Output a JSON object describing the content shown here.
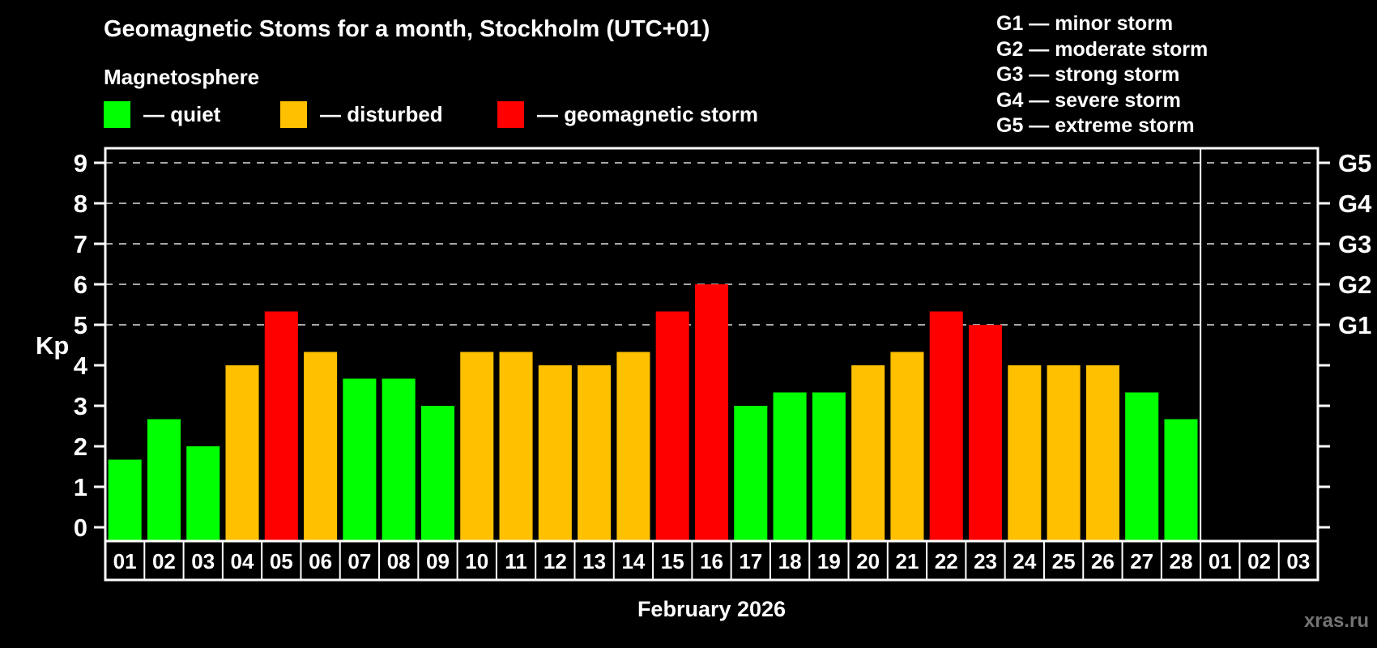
{
  "title": "Geomagnetic Stoms for a month, Stockholm (UTC+01)",
  "subtitle": "Magnetosphere",
  "legend": {
    "items": [
      {
        "label": "— quiet",
        "status": "quiet"
      },
      {
        "label": "— disturbed",
        "status": "disturbed"
      },
      {
        "label": "— geomagnetic storm",
        "status": "storm"
      }
    ]
  },
  "g_scale_legend": [
    "G1 — minor storm",
    "G2 — moderate storm",
    "G3 — strong storm",
    "G4 — severe storm",
    "G5 — extreme storm"
  ],
  "watermark": "xras.ru",
  "colors": {
    "quiet": "#00ff00",
    "disturbed": "#ffc000",
    "storm": "#ff0000",
    "background": "#000000",
    "axis": "#ffffff",
    "grid": "#a6a6a6",
    "watermark": "#747474"
  },
  "chart_data": {
    "type": "bar",
    "title": "Geomagnetic Stoms for a month, Stockholm (UTC+01)",
    "subtitle": "Magnetosphere",
    "xlabel": "February 2026",
    "ylabel": "Kp",
    "ylim": [
      0,
      9
    ],
    "yticks": [
      0,
      1,
      2,
      3,
      4,
      5,
      6,
      7,
      8,
      9
    ],
    "grid_levels": [
      5,
      6,
      7,
      8,
      9
    ],
    "grid_style": "dashed",
    "legend_position": "top",
    "right_axis": [
      {
        "kp": 5,
        "label": "G1"
      },
      {
        "kp": 6,
        "label": "G2"
      },
      {
        "kp": 7,
        "label": "G3"
      },
      {
        "kp": 8,
        "label": "G4"
      },
      {
        "kp": 9,
        "label": "G5"
      }
    ],
    "bars": [
      {
        "day": "01",
        "kp": 1.67,
        "status": "quiet"
      },
      {
        "day": "02",
        "kp": 2.67,
        "status": "quiet"
      },
      {
        "day": "03",
        "kp": 2.0,
        "status": "quiet"
      },
      {
        "day": "04",
        "kp": 4.0,
        "status": "disturbed"
      },
      {
        "day": "05",
        "kp": 5.33,
        "status": "storm"
      },
      {
        "day": "06",
        "kp": 4.33,
        "status": "disturbed"
      },
      {
        "day": "07",
        "kp": 3.67,
        "status": "quiet"
      },
      {
        "day": "08",
        "kp": 3.67,
        "status": "quiet"
      },
      {
        "day": "09",
        "kp": 3.0,
        "status": "quiet"
      },
      {
        "day": "10",
        "kp": 4.33,
        "status": "disturbed"
      },
      {
        "day": "11",
        "kp": 4.33,
        "status": "disturbed"
      },
      {
        "day": "12",
        "kp": 4.0,
        "status": "disturbed"
      },
      {
        "day": "13",
        "kp": 4.0,
        "status": "disturbed"
      },
      {
        "day": "14",
        "kp": 4.33,
        "status": "disturbed"
      },
      {
        "day": "15",
        "kp": 5.33,
        "status": "storm"
      },
      {
        "day": "16",
        "kp": 6.0,
        "status": "storm"
      },
      {
        "day": "17",
        "kp": 3.0,
        "status": "quiet"
      },
      {
        "day": "18",
        "kp": 3.33,
        "status": "quiet"
      },
      {
        "day": "19",
        "kp": 3.33,
        "status": "quiet"
      },
      {
        "day": "20",
        "kp": 4.0,
        "status": "disturbed"
      },
      {
        "day": "21",
        "kp": 4.33,
        "status": "disturbed"
      },
      {
        "day": "22",
        "kp": 5.33,
        "status": "storm"
      },
      {
        "day": "23",
        "kp": 5.0,
        "status": "storm"
      },
      {
        "day": "24",
        "kp": 4.0,
        "status": "disturbed"
      },
      {
        "day": "25",
        "kp": 4.0,
        "status": "disturbed"
      },
      {
        "day": "26",
        "kp": 4.0,
        "status": "disturbed"
      },
      {
        "day": "27",
        "kp": 3.33,
        "status": "quiet"
      },
      {
        "day": "28",
        "kp": 2.67,
        "status": "quiet"
      }
    ],
    "trailing_days": [
      "01",
      "02",
      "03"
    ]
  }
}
